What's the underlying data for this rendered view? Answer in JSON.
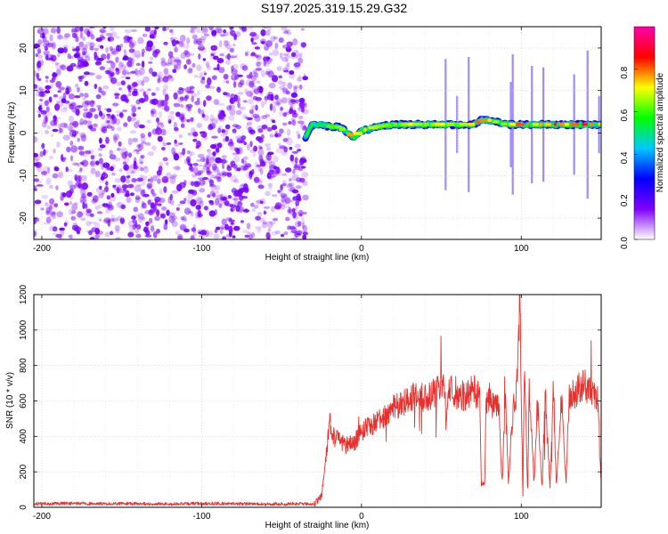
{
  "title": "S197.2025.319.15.29.G32",
  "chart_data": [
    {
      "type": "heatmap",
      "title": "S197.2025.319.15.29.G32",
      "xlabel": "Height of straight line (km)",
      "ylabel": "Frequency (Hz)",
      "xlim": [
        -205,
        150
      ],
      "ylim": [
        -25,
        25
      ],
      "x_ticks": [
        -200,
        -100,
        0,
        100
      ],
      "x_tick_labels": [
        "-200",
        "-100",
        "0",
        "100"
      ],
      "y_ticks": [
        -20,
        -10,
        0,
        10,
        20
      ],
      "y_tick_labels": [
        "-20",
        "-10",
        "0",
        "10",
        "20"
      ],
      "noise_region": {
        "x_start": -205,
        "x_end": -35,
        "amplitude_range": [
          0.0,
          0.25
        ]
      },
      "signal_region": {
        "x_start": -35,
        "x_end": 150
      },
      "ridge": {
        "x": [
          -35,
          -32,
          -30,
          -25,
          -20,
          -15,
          -10,
          -5,
          0,
          5,
          10,
          20,
          30,
          40,
          50,
          60,
          70,
          75,
          80,
          90,
          100,
          110,
          120,
          130,
          140,
          150
        ],
        "y": [
          -1,
          1.5,
          2,
          2,
          1.5,
          1.5,
          0.5,
          -1,
          0.5,
          1,
          1.5,
          2,
          2,
          2,
          2,
          2,
          2,
          3,
          3,
          2,
          2,
          2,
          2,
          2,
          2,
          2
        ],
        "amplitude": [
          0.3,
          0.45,
          0.5,
          0.55,
          0.6,
          0.65,
          0.7,
          0.85,
          0.8,
          0.75,
          0.7,
          0.7,
          0.75,
          0.7,
          0.75,
          0.7,
          0.8,
          0.9,
          0.8,
          0.7,
          0.9,
          0.75,
          0.9,
          0.8,
          0.9,
          0.85
        ]
      },
      "colorbar": {
        "label": "Normalized spectral amplitude",
        "range": [
          0,
          1
        ],
        "ticks": [
          0.0,
          0.2,
          0.4,
          0.6,
          0.8
        ],
        "tick_labels": [
          "0.0",
          "0.2",
          "0.4",
          "0.6",
          "0.8"
        ],
        "colors": [
          "#ffffff",
          "#8000ff",
          "#0000ff",
          "#00c8ff",
          "#00ff00",
          "#ffff00",
          "#ff0000",
          "#ff00aa"
        ]
      }
    },
    {
      "type": "line",
      "xlabel": "Height of straight line (km)",
      "ylabel": "SNR (10 * v/v)",
      "xlim": [
        -205,
        150
      ],
      "ylim": [
        0,
        1200
      ],
      "x_ticks": [
        -200,
        -100,
        0,
        100
      ],
      "x_tick_labels": [
        "-200",
        "-100",
        "0",
        "100"
      ],
      "y_ticks": [
        0,
        200,
        400,
        600,
        800,
        1000,
        1200
      ],
      "y_tick_labels": [
        "0",
        "200",
        "400",
        "600",
        "800",
        "1000",
        "1200"
      ],
      "series": [
        {
          "name": "SNR",
          "color": "#e8302c",
          "x": [
            -205,
            -180,
            -150,
            -120,
            -100,
            -80,
            -60,
            -40,
            -30,
            -25,
            -24,
            -22,
            -20,
            -18,
            -15,
            -10,
            -5,
            0,
            5,
            10,
            15,
            20,
            25,
            30,
            35,
            40,
            45,
            50,
            52,
            53,
            55,
            60,
            65,
            70,
            74,
            75,
            77,
            78,
            80,
            82,
            84,
            86,
            88,
            90,
            92,
            95,
            97,
            98,
            99,
            100,
            101,
            102,
            104,
            105,
            108,
            110,
            113,
            115,
            118,
            120,
            122,
            125,
            128,
            130,
            135,
            140,
            145,
            148,
            150
          ],
          "y": [
            20,
            22,
            20,
            18,
            22,
            20,
            18,
            20,
            18,
            60,
            150,
            300,
            480,
            400,
            380,
            350,
            360,
            420,
            460,
            480,
            520,
            560,
            580,
            600,
            640,
            620,
            650,
            660,
            700,
            450,
            680,
            640,
            620,
            660,
            630,
            130,
            120,
            600,
            620,
            580,
            590,
            600,
            130,
            620,
            150,
            580,
            640,
            800,
            1200,
            700,
            40,
            850,
            60,
            700,
            130,
            600,
            110,
            620,
            120,
            640,
            110,
            640,
            130,
            620,
            660,
            690,
            640,
            600,
            130
          ]
        }
      ]
    }
  ]
}
